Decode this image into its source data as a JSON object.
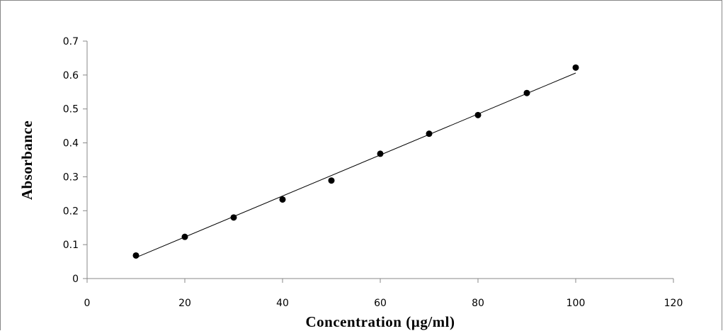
{
  "chart_data": {
    "type": "scatter",
    "title": "",
    "xlabel": "Concentration (µg/ml)",
    "ylabel": "Absorbance",
    "xlim": [
      0,
      120
    ],
    "ylim": [
      0,
      0.7
    ],
    "x_ticks": [
      "0",
      "20",
      "40",
      "60",
      "80",
      "100",
      "120"
    ],
    "y_ticks": [
      "0",
      "0.1",
      "0.2",
      "0.3",
      "0.4",
      "0.5",
      "0.6",
      "0.7"
    ],
    "grid": false,
    "legend": "none",
    "points": [
      {
        "x": 10,
        "y": 0.068
      },
      {
        "x": 20,
        "y": 0.123
      },
      {
        "x": 30,
        "y": 0.18
      },
      {
        "x": 40,
        "y": 0.233
      },
      {
        "x": 50,
        "y": 0.289
      },
      {
        "x": 60,
        "y": 0.368
      },
      {
        "x": 70,
        "y": 0.427
      },
      {
        "x": 80,
        "y": 0.482
      },
      {
        "x": 90,
        "y": 0.547
      },
      {
        "x": 100,
        "y": 0.622
      }
    ],
    "trendline": {
      "type": "linear",
      "from": {
        "x": 10,
        "y": 0.062
      },
      "to": {
        "x": 100,
        "y": 0.606
      }
    },
    "colors": {
      "marker": "#000000",
      "line": "#000000",
      "axis": "#888888"
    }
  }
}
